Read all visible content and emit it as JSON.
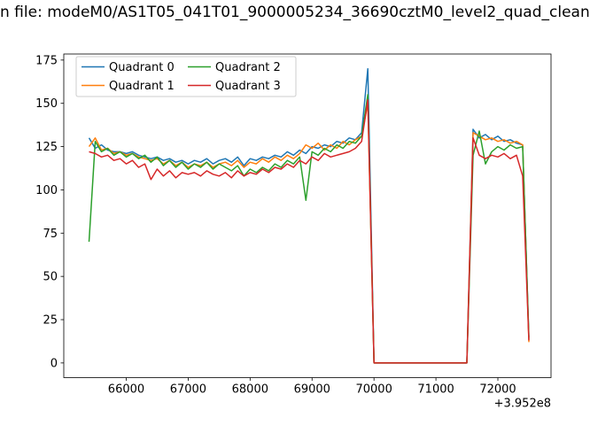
{
  "chart_data": {
    "type": "line",
    "title": "n file: modeM0/AS1T05_041T01_9000005234_36690cztM0_level2_quad_clean",
    "x_offset_label": "+3.952e8",
    "xlabel": "",
    "ylabel": "",
    "xticks": [
      66000,
      67000,
      68000,
      69000,
      70000,
      71000,
      72000
    ],
    "yticks": [
      0,
      25,
      50,
      75,
      100,
      125,
      150,
      175
    ],
    "xlim": [
      64992,
      72858
    ],
    "ylim": [
      -8.5,
      178.5
    ],
    "grid": false,
    "legend": {
      "position": "upper left",
      "columns": 2
    },
    "x": [
      65400,
      65500,
      65600,
      65700,
      65800,
      65900,
      66000,
      66100,
      66200,
      66300,
      66400,
      66500,
      66600,
      66700,
      66800,
      66900,
      67000,
      67100,
      67200,
      67300,
      67400,
      67500,
      67600,
      67700,
      67800,
      67900,
      68000,
      68100,
      68200,
      68300,
      68400,
      68500,
      68600,
      68700,
      68800,
      68900,
      69000,
      69100,
      69200,
      69300,
      69400,
      69500,
      69600,
      69700,
      69800,
      69900,
      70000,
      70100,
      70200,
      70300,
      70400,
      70500,
      70600,
      70700,
      70800,
      70900,
      71000,
      71100,
      71200,
      71300,
      71400,
      71500,
      71600,
      71700,
      71800,
      71900,
      72000,
      72100,
      72200,
      72300,
      72400,
      72500
    ],
    "series": [
      {
        "name": "Quadrant 0",
        "color": "#1f77b4",
        "values": [
          130,
          124,
          126,
          123,
          122,
          122,
          121,
          122,
          120,
          119,
          118,
          119,
          117,
          118,
          116,
          117,
          115,
          117,
          116,
          118,
          115,
          117,
          118,
          116,
          119,
          114,
          118,
          117,
          119,
          118,
          120,
          119,
          122,
          120,
          123,
          121,
          125,
          124,
          126,
          125,
          128,
          127,
          130,
          129,
          133,
          170,
          0,
          0,
          0,
          0,
          0,
          0,
          0,
          0,
          0,
          0,
          0,
          0,
          0,
          0,
          0,
          0,
          135,
          130,
          132,
          129,
          131,
          128,
          129,
          127,
          126,
          14
        ]
      },
      {
        "name": "Quadrant 1",
        "color": "#ff7f0e",
        "values": [
          125,
          130,
          123,
          124,
          121,
          122,
          120,
          121,
          119,
          118,
          117,
          118,
          115,
          117,
          114,
          116,
          113,
          115,
          114,
          116,
          113,
          115,
          116,
          114,
          117,
          113,
          116,
          115,
          118,
          116,
          119,
          117,
          120,
          118,
          121,
          126,
          124,
          127,
          123,
          126,
          124,
          128,
          126,
          129,
          131,
          150,
          0,
          0,
          0,
          0,
          0,
          0,
          0,
          0,
          0,
          0,
          0,
          0,
          0,
          0,
          0,
          0,
          133,
          131,
          129,
          130,
          128,
          129,
          127,
          128,
          126,
          12
        ]
      },
      {
        "name": "Quadrant 2",
        "color": "#2ca02c",
        "values": [
          70,
          128,
          122,
          124,
          120,
          122,
          119,
          121,
          118,
          120,
          116,
          119,
          114,
          117,
          113,
          116,
          112,
          115,
          113,
          116,
          112,
          115,
          113,
          111,
          114,
          108,
          112,
          110,
          113,
          111,
          115,
          113,
          117,
          115,
          119,
          94,
          122,
          120,
          124,
          122,
          126,
          124,
          128,
          127,
          131,
          155,
          0,
          0,
          0,
          0,
          0,
          0,
          0,
          0,
          0,
          0,
          0,
          0,
          0,
          0,
          0,
          0,
          120,
          134,
          115,
          122,
          125,
          123,
          126,
          124,
          125,
          15
        ]
      },
      {
        "name": "Quadrant 3",
        "color": "#d62728",
        "values": [
          122,
          121,
          119,
          120,
          117,
          118,
          115,
          117,
          113,
          115,
          106,
          112,
          108,
          111,
          107,
          110,
          109,
          110,
          108,
          111,
          109,
          108,
          110,
          107,
          111,
          108,
          110,
          109,
          112,
          110,
          113,
          112,
          115,
          113,
          117,
          115,
          119,
          117,
          121,
          119,
          120,
          121,
          122,
          124,
          128,
          152,
          0,
          0,
          0,
          0,
          0,
          0,
          0,
          0,
          0,
          0,
          0,
          0,
          0,
          0,
          0,
          0,
          130,
          120,
          118,
          120,
          119,
          121,
          118,
          120,
          108,
          13
        ]
      }
    ]
  }
}
